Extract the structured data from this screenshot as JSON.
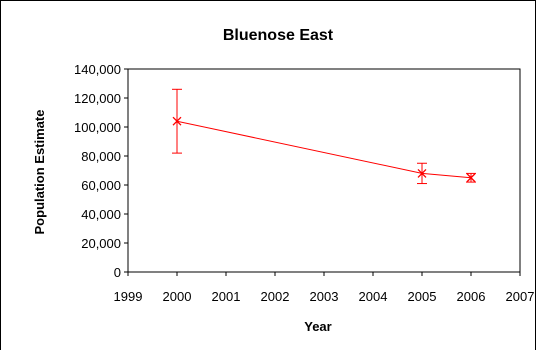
{
  "chart_data": {
    "type": "line",
    "title": "Bluenose East",
    "xlabel": "Year",
    "ylabel": "Population Estimate",
    "xlim": [
      1999,
      2007
    ],
    "ylim": [
      0,
      140000
    ],
    "x_ticks": [
      "1999",
      "2000",
      "2001",
      "2002",
      "2003",
      "2004",
      "2005",
      "2006",
      "2007"
    ],
    "y_ticks": [
      "0",
      "20,000",
      "40,000",
      "60,000",
      "80,000",
      "100,000",
      "120,000",
      "140,000"
    ],
    "series": [
      {
        "x": [
          2000,
          2005,
          2006
        ],
        "y": [
          104000,
          68000,
          65000
        ],
        "error_low": [
          82000,
          61000,
          62000
        ],
        "error_high": [
          126000,
          75000,
          68000
        ]
      }
    ],
    "grid": false,
    "legend": "none",
    "color": "#ff0000"
  }
}
